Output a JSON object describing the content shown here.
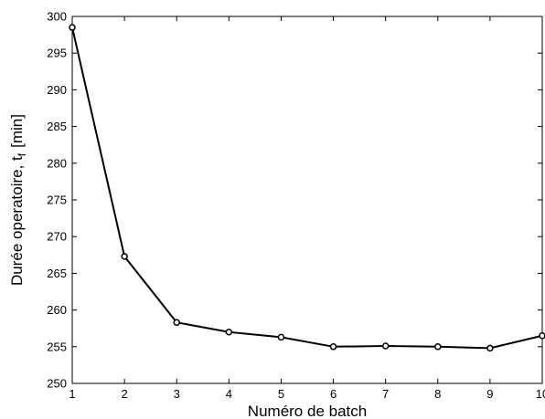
{
  "chart_data": {
    "type": "line",
    "title": "",
    "xlabel": "Numéro de batch",
    "ylabel_main": "Durée operatoire, t",
    "ylabel_sub": "f",
    "ylabel_unit": "[min]",
    "xlim": [
      1,
      10
    ],
    "ylim": [
      250,
      300
    ],
    "xticks": [
      1,
      2,
      3,
      4,
      5,
      6,
      7,
      8,
      9,
      10
    ],
    "yticks": [
      250,
      255,
      260,
      265,
      270,
      275,
      280,
      285,
      290,
      295,
      300
    ],
    "grid": false,
    "series": [
      {
        "x": [
          1,
          2,
          3,
          4,
          5,
          6,
          7,
          8,
          9,
          10
        ],
        "values": [
          298.5,
          267.3,
          258.3,
          257.0,
          256.3,
          255.0,
          255.1,
          255.0,
          254.8,
          256.5
        ],
        "color": "#000000",
        "marker": "circle"
      }
    ]
  }
}
